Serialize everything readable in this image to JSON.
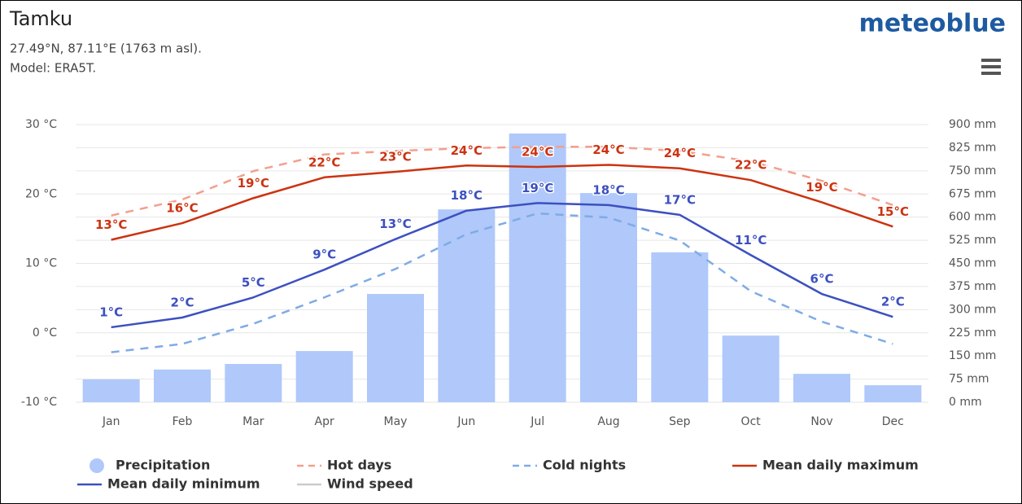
{
  "chart_data": {
    "type": "combo",
    "title": "Tamku",
    "subtitle": [
      "27.49°N, 87.11°E (1763 m asl).",
      "Model: ERA5T."
    ],
    "brand": "meteoblue",
    "categories": [
      "Jan",
      "Feb",
      "Mar",
      "Apr",
      "May",
      "Jun",
      "Jul",
      "Aug",
      "Sep",
      "Oct",
      "Nov",
      "Dec"
    ],
    "ylim": [
      -10,
      30
    ],
    "yticks": [
      {
        "value": -10,
        "label": "-10 °C"
      },
      {
        "value": 0,
        "label": "0 °C"
      },
      {
        "value": 10,
        "label": "10 °C"
      },
      {
        "value": 20,
        "label": "20 °C"
      },
      {
        "value": 30,
        "label": "30 °C"
      }
    ],
    "y2lim": [
      0,
      900
    ],
    "y2ticks": [
      {
        "value": 0,
        "label": "0 mm"
      },
      {
        "value": 75,
        "label": "75 mm"
      },
      {
        "value": 150,
        "label": "150 mm"
      },
      {
        "value": 225,
        "label": "225 mm"
      },
      {
        "value": 300,
        "label": "300 mm"
      },
      {
        "value": 375,
        "label": "375 mm"
      },
      {
        "value": 450,
        "label": "450 mm"
      },
      {
        "value": 525,
        "label": "525 mm"
      },
      {
        "value": 600,
        "label": "600 mm"
      },
      {
        "value": 675,
        "label": "675 mm"
      },
      {
        "value": 750,
        "label": "750 mm"
      },
      {
        "value": 825,
        "label": "825 mm"
      },
      {
        "value": 900,
        "label": "900 mm"
      }
    ],
    "grid": true,
    "series": [
      {
        "name": "Precipitation",
        "type": "bar",
        "axis": "y2",
        "color": "#b0c8fa",
        "values": [
          74,
          106,
          124,
          166,
          351,
          625,
          871,
          678,
          486,
          216,
          92,
          55
        ]
      },
      {
        "name": "Hot days",
        "type": "line",
        "dashed": true,
        "color": "#f2a08e",
        "values": [
          16.9,
          19.2,
          23.3,
          25.7,
          26.2,
          26.6,
          26.8,
          26.8,
          26.2,
          24.7,
          21.9,
          18.4
        ]
      },
      {
        "name": "Cold nights",
        "type": "line",
        "dashed": true,
        "color": "#7fabe6",
        "values": [
          -2.8,
          -1.6,
          1.3,
          5.1,
          9.2,
          14.2,
          17.2,
          16.6,
          13.3,
          6.0,
          1.6,
          -1.6
        ]
      },
      {
        "name": "Mean daily maximum",
        "type": "line",
        "color": "#cc3311",
        "values": [
          13.4,
          15.8,
          19.4,
          22.4,
          23.2,
          24.1,
          23.9,
          24.2,
          23.7,
          22.0,
          18.8,
          15.3
        ],
        "value_labels": [
          "13°C",
          "16°C",
          "19°C",
          "22°C",
          "23°C",
          "24°C",
          "24°C",
          "24°C",
          "24°C",
          "22°C",
          "19°C",
          "15°C"
        ]
      },
      {
        "name": "Mean daily minimum",
        "type": "line",
        "color": "#3c50c0",
        "values": [
          0.8,
          2.2,
          5.1,
          9.1,
          13.5,
          17.6,
          18.7,
          18.4,
          17.0,
          11.2,
          5.6,
          2.3
        ],
        "value_labels": [
          "1°C",
          "2°C",
          "5°C",
          "9°C",
          "13°C",
          "18°C",
          "19°C",
          "18°C",
          "17°C",
          "11°C",
          "6°C",
          "2°C"
        ]
      },
      {
        "name": "Wind speed",
        "type": "line",
        "hidden": true,
        "color": "#aaaaaa"
      }
    ]
  }
}
